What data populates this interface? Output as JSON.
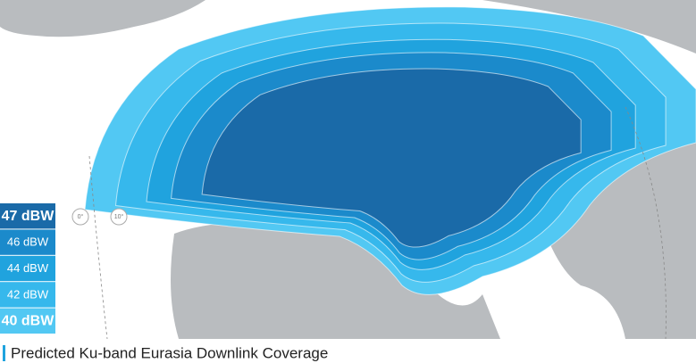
{
  "legend": {
    "items": [
      {
        "label": "47 dBW",
        "color": "#1a6aa8"
      },
      {
        "label": "46 dBW",
        "color": "#1b8acb"
      },
      {
        "label": "44 dBW",
        "color": "#20a3de"
      },
      {
        "label": "42 dBW",
        "color": "#36b8ec"
      },
      {
        "label": "40 dBW",
        "color": "#52c8f3"
      }
    ]
  },
  "longitude_labels": [
    "0°",
    "10°"
  ],
  "caption": "Predicted Ku-band Eurasia Downlink Coverage"
}
